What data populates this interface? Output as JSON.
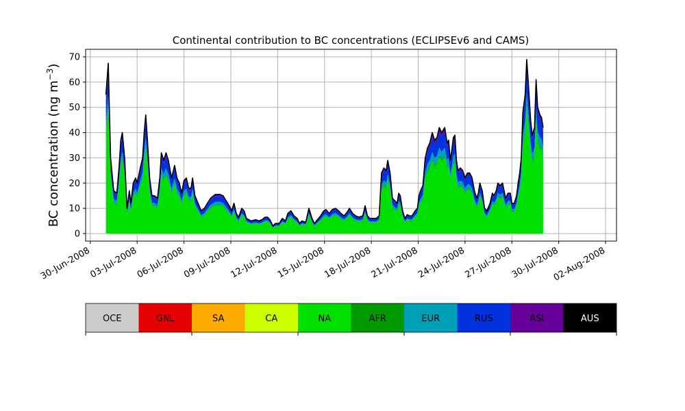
{
  "chart_data": {
    "type": "area",
    "stacked": true,
    "title": "Continental contribution to BC concentrations (ECLIPSEv6 and CAMS)",
    "ylabel": "BC concentration (ng m",
    "ylabel_superscript": "−3",
    "ylabel_suffix": ")",
    "xlabel": "",
    "ylim": [
      -3,
      73
    ],
    "yticks": [
      0,
      10,
      20,
      30,
      40,
      50,
      60,
      70
    ],
    "xlim_days": [
      -0.3,
      33.7
    ],
    "x_unit": "days since 30-Jun-2008",
    "grid": true,
    "xticks": [
      {
        "day": 0,
        "label": "30-Jun-2008"
      },
      {
        "day": 3,
        "label": "03-Jul-2008"
      },
      {
        "day": 6,
        "label": "06-Jul-2008"
      },
      {
        "day": 9,
        "label": "09-Jul-2008"
      },
      {
        "day": 12,
        "label": "12-Jul-2008"
      },
      {
        "day": 15,
        "label": "15-Jul-2008"
      },
      {
        "day": 18,
        "label": "18-Jul-2008"
      },
      {
        "day": 21,
        "label": "21-Jul-2008"
      },
      {
        "day": 24,
        "label": "24-Jul-2008"
      },
      {
        "day": 27,
        "label": "27-Jul-2008"
      },
      {
        "day": 30,
        "label": "30-Jul-2008"
      },
      {
        "day": 33,
        "label": "02-Aug-2008"
      }
    ],
    "total_outline": [
      [
        1.0,
        55
      ],
      [
        1.15,
        67.5
      ],
      [
        1.3,
        30
      ],
      [
        1.5,
        17
      ],
      [
        1.7,
        16
      ],
      [
        1.85,
        27
      ],
      [
        1.95,
        37
      ],
      [
        2.05,
        40
      ],
      [
        2.2,
        30
      ],
      [
        2.35,
        10
      ],
      [
        2.5,
        17
      ],
      [
        2.6,
        12
      ],
      [
        2.75,
        20
      ],
      [
        2.9,
        22
      ],
      [
        3.0,
        20
      ],
      [
        3.2,
        26
      ],
      [
        3.35,
        30
      ],
      [
        3.45,
        40
      ],
      [
        3.55,
        47
      ],
      [
        3.65,
        38
      ],
      [
        3.8,
        22
      ],
      [
        3.95,
        15
      ],
      [
        4.1,
        15
      ],
      [
        4.3,
        14
      ],
      [
        4.45,
        22
      ],
      [
        4.55,
        32
      ],
      [
        4.7,
        29
      ],
      [
        4.85,
        32
      ],
      [
        5.0,
        29
      ],
      [
        5.2,
        22
      ],
      [
        5.4,
        27
      ],
      [
        5.55,
        22
      ],
      [
        5.7,
        20
      ],
      [
        5.85,
        16
      ],
      [
        6.0,
        21
      ],
      [
        6.15,
        22
      ],
      [
        6.3,
        18
      ],
      [
        6.45,
        18
      ],
      [
        6.55,
        22
      ],
      [
        6.7,
        15
      ],
      [
        6.9,
        12
      ],
      [
        7.1,
        9
      ],
      [
        7.3,
        10
      ],
      [
        7.5,
        12
      ],
      [
        7.7,
        14
      ],
      [
        8.0,
        15.5
      ],
      [
        8.3,
        15.5
      ],
      [
        8.5,
        15
      ],
      [
        8.7,
        13
      ],
      [
        8.9,
        11
      ],
      [
        9.05,
        9
      ],
      [
        9.2,
        12
      ],
      [
        9.35,
        8
      ],
      [
        9.5,
        6.5
      ],
      [
        9.7,
        10
      ],
      [
        9.85,
        9
      ],
      [
        10.0,
        6
      ],
      [
        10.3,
        5
      ],
      [
        10.6,
        5.5
      ],
      [
        10.8,
        5
      ],
      [
        11.0,
        5.5
      ],
      [
        11.2,
        6.5
      ],
      [
        11.35,
        6.5
      ],
      [
        11.5,
        5.5
      ],
      [
        11.7,
        3
      ],
      [
        11.85,
        4
      ],
      [
        12.1,
        4
      ],
      [
        12.3,
        6
      ],
      [
        12.5,
        5
      ],
      [
        12.65,
        8
      ],
      [
        12.85,
        9
      ],
      [
        13.05,
        7
      ],
      [
        13.25,
        6
      ],
      [
        13.4,
        4
      ],
      [
        13.55,
        5
      ],
      [
        13.8,
        4.5
      ],
      [
        14.0,
        10
      ],
      [
        14.2,
        6
      ],
      [
        14.35,
        4
      ],
      [
        14.55,
        5.5
      ],
      [
        14.75,
        7
      ],
      [
        14.95,
        9
      ],
      [
        15.1,
        9.5
      ],
      [
        15.3,
        8
      ],
      [
        15.5,
        9.5
      ],
      [
        15.7,
        10
      ],
      [
        15.9,
        9
      ],
      [
        16.05,
        8
      ],
      [
        16.25,
        7
      ],
      [
        16.45,
        8.5
      ],
      [
        16.6,
        10
      ],
      [
        16.8,
        8
      ],
      [
        17.0,
        7
      ],
      [
        17.2,
        6.5
      ],
      [
        17.45,
        7
      ],
      [
        17.6,
        11
      ],
      [
        17.75,
        7
      ],
      [
        17.9,
        6
      ],
      [
        18.1,
        6
      ],
      [
        18.3,
        6
      ],
      [
        18.5,
        7
      ],
      [
        18.65,
        24
      ],
      [
        18.8,
        26
      ],
      [
        18.95,
        25
      ],
      [
        19.05,
        29
      ],
      [
        19.2,
        24
      ],
      [
        19.35,
        14
      ],
      [
        19.5,
        13
      ],
      [
        19.65,
        12
      ],
      [
        19.75,
        16
      ],
      [
        19.85,
        15
      ],
      [
        20.0,
        9
      ],
      [
        20.15,
        6
      ],
      [
        20.3,
        7.5
      ],
      [
        20.45,
        7
      ],
      [
        20.6,
        7
      ],
      [
        20.8,
        9
      ],
      [
        20.95,
        10
      ],
      [
        21.05,
        15
      ],
      [
        21.15,
        17
      ],
      [
        21.3,
        19
      ],
      [
        21.45,
        30
      ],
      [
        21.6,
        34
      ],
      [
        21.75,
        36
      ],
      [
        21.9,
        40
      ],
      [
        22.05,
        37
      ],
      [
        22.2,
        38
      ],
      [
        22.35,
        42
      ],
      [
        22.5,
        40
      ],
      [
        22.6,
        41
      ],
      [
        22.7,
        42
      ],
      [
        22.85,
        36
      ],
      [
        22.95,
        37
      ],
      [
        23.05,
        29
      ],
      [
        23.15,
        33
      ],
      [
        23.25,
        38
      ],
      [
        23.35,
        39
      ],
      [
        23.45,
        29
      ],
      [
        23.55,
        25
      ],
      [
        23.7,
        26
      ],
      [
        23.85,
        25
      ],
      [
        24.0,
        22
      ],
      [
        24.15,
        24
      ],
      [
        24.3,
        24
      ],
      [
        24.45,
        22
      ],
      [
        24.6,
        17
      ],
      [
        24.75,
        14
      ],
      [
        24.85,
        16
      ],
      [
        24.95,
        20
      ],
      [
        25.1,
        17
      ],
      [
        25.25,
        10
      ],
      [
        25.4,
        9
      ],
      [
        25.6,
        12
      ],
      [
        25.75,
        16
      ],
      [
        25.85,
        15
      ],
      [
        26.0,
        17
      ],
      [
        26.1,
        20
      ],
      [
        26.25,
        19
      ],
      [
        26.4,
        20
      ],
      [
        26.6,
        14
      ],
      [
        26.75,
        16
      ],
      [
        26.9,
        16
      ],
      [
        27.0,
        12
      ],
      [
        27.15,
        12
      ],
      [
        27.3,
        15
      ],
      [
        27.4,
        20
      ],
      [
        27.5,
        24
      ],
      [
        27.6,
        30
      ],
      [
        27.7,
        48
      ],
      [
        27.85,
        55
      ],
      [
        27.95,
        69
      ],
      [
        28.05,
        60
      ],
      [
        28.2,
        45
      ],
      [
        28.3,
        39
      ],
      [
        28.45,
        42
      ],
      [
        28.55,
        61
      ],
      [
        28.65,
        50
      ],
      [
        28.8,
        47
      ],
      [
        28.9,
        46
      ],
      [
        29.0,
        42
      ]
    ],
    "series": [
      {
        "name": "OCE",
        "color": "#cccccc"
      },
      {
        "name": "GNL",
        "color": "#e60000"
      },
      {
        "name": "SA",
        "color": "#ffaa00"
      },
      {
        "name": "CA",
        "color": "#ccff00"
      },
      {
        "name": "NA",
        "color": "#00e000",
        "fraction_of_total": 0.72
      },
      {
        "name": "AFR",
        "color": "#009900",
        "fraction_of_total": 0.015
      },
      {
        "name": "EUR",
        "color": "#00a0b8",
        "fraction_of_total": 0.075
      },
      {
        "name": "RUS",
        "color": "#0033dd",
        "fraction_of_total": 0.15
      },
      {
        "name": "ASI",
        "color": "#660099",
        "fraction_of_total": 0.04
      },
      {
        "name": "AUS",
        "color": "#000000"
      }
    ],
    "colorbar_labels": [
      "OCE",
      "GNL",
      "SA",
      "CA",
      "NA",
      "AFR",
      "EUR",
      "RUS",
      "ASI",
      "AUS"
    ],
    "colorbar_colors": [
      "#cccccc",
      "#e60000",
      "#ffaa00",
      "#ccff00",
      "#00e000",
      "#009900",
      "#00a0b8",
      "#0033dd",
      "#660099",
      "#000000"
    ]
  }
}
